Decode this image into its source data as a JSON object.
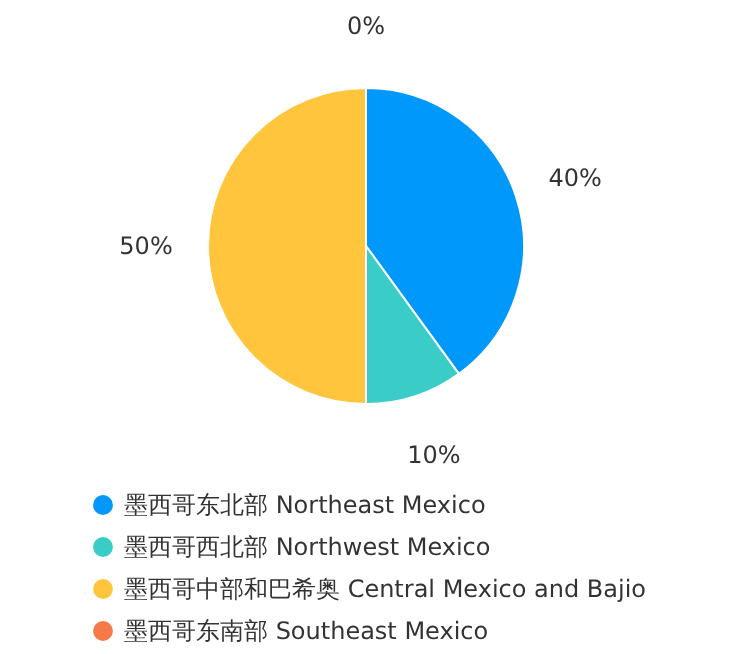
{
  "chart_data": {
    "type": "pie",
    "categories": [
      "墨西哥东北部 Northeast Mexico",
      "墨西哥西北部 Northwest Mexico",
      "墨西哥中部和巴希奥 Central Mexico and Bajio",
      "墨西哥东南部 Southeast Mexico"
    ],
    "values": [
      40,
      10,
      50,
      0
    ],
    "colors": [
      "#0098fb",
      "#3acdc8",
      "#ffc53d",
      "#f47a4a"
    ],
    "value_labels": [
      "40%",
      "10%",
      "50%",
      "0%"
    ],
    "legend": "bottom"
  }
}
